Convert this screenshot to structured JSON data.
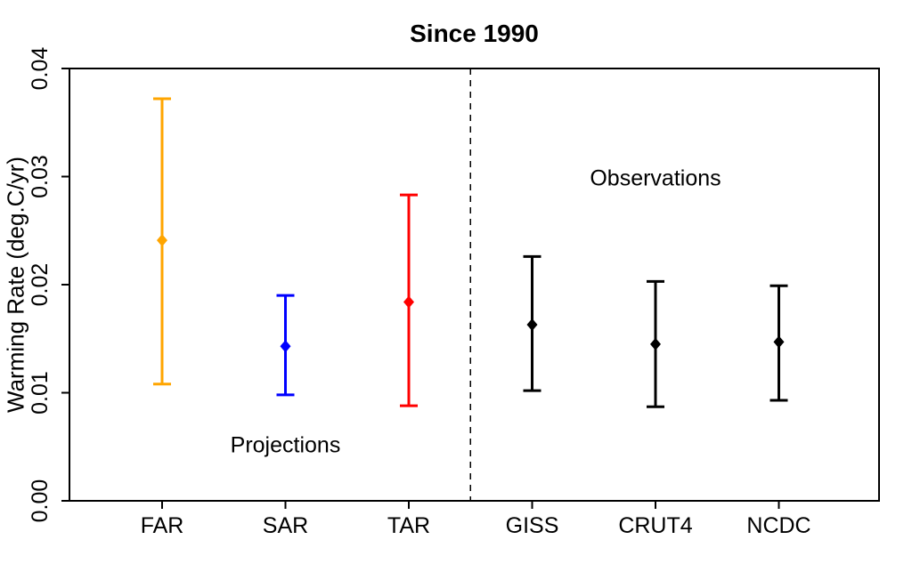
{
  "page": {
    "background": "#FFFFFF"
  },
  "chart_data": {
    "type": "scatter",
    "title": "Since 1990",
    "xlabel": "",
    "ylabel": "Warming Rate (deg.C/yr)",
    "ylim": [
      0,
      0.04
    ],
    "ytick_values": [
      0,
      0.01,
      0.02,
      0.03,
      0.04
    ],
    "ytick_labels": [
      "0.00",
      "0.01",
      "0.02",
      "0.03",
      "0.04"
    ],
    "categories": [
      "FAR",
      "SAR",
      "TAR",
      "GISS",
      "CRUT4",
      "NCDC"
    ],
    "grid": false,
    "legend": false,
    "marker": "diamond",
    "axis_color": "#000000",
    "points": [
      {
        "label": "FAR",
        "group": "Projections",
        "color": "#FFA500",
        "mean": 0.0241,
        "low": 0.0108,
        "high": 0.0372
      },
      {
        "label": "SAR",
        "group": "Projections",
        "color": "#0000FF",
        "mean": 0.0143,
        "low": 0.0098,
        "high": 0.019
      },
      {
        "label": "TAR",
        "group": "Projections",
        "color": "#FF0000",
        "mean": 0.0184,
        "low": 0.0088,
        "high": 0.0283
      },
      {
        "label": "GISS",
        "group": "Observations",
        "color": "#000000",
        "mean": 0.0163,
        "low": 0.0102,
        "high": 0.0226
      },
      {
        "label": "CRUT4",
        "group": "Observations",
        "color": "#000000",
        "mean": 0.0145,
        "low": 0.0087,
        "high": 0.0203
      },
      {
        "label": "NCDC",
        "group": "Observations",
        "color": "#000000",
        "mean": 0.0147,
        "low": 0.0093,
        "high": 0.0199
      }
    ],
    "annotations": [
      {
        "text": "Projections",
        "x_category": 2,
        "y": 0.0052
      },
      {
        "text": "Observations",
        "x_category": 5,
        "y": 0.0299
      }
    ],
    "separator": {
      "style": "dashed",
      "after_category": "TAR",
      "x_category": 3.5
    }
  }
}
